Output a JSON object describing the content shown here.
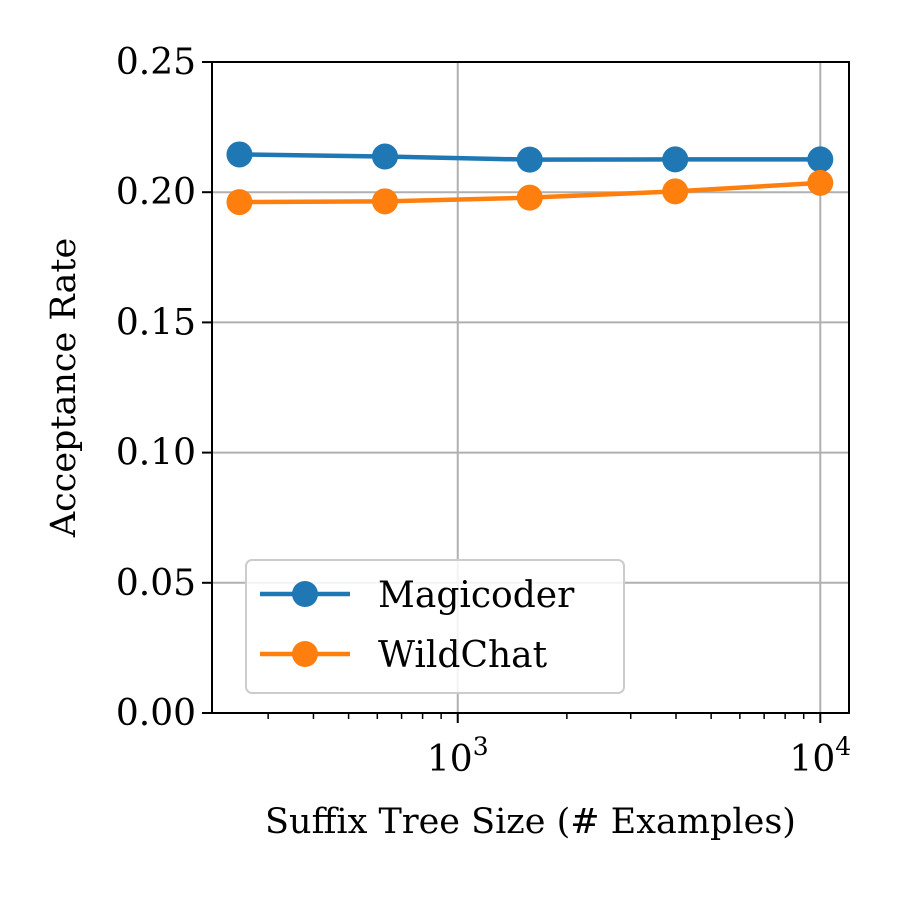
{
  "chart_data": {
    "type": "line",
    "title": "",
    "xlabel": "Suffix Tree Size (# Examples)",
    "ylabel": "Acceptance Rate",
    "x_scale": "log",
    "xlim": [
      210,
      12000
    ],
    "ylim": [
      0.0,
      0.25
    ],
    "y_ticks": [
      "0.00",
      "0.05",
      "0.10",
      "0.15",
      "0.20",
      "0.25"
    ],
    "x_ticks": [
      {
        "value": 1000,
        "base": "10",
        "exp": "3"
      },
      {
        "value": 10000,
        "base": "10",
        "exp": "4"
      }
    ],
    "x": [
      250,
      630,
      1580,
      3980,
      10000
    ],
    "series": [
      {
        "name": "Magicoder",
        "color": "#1f77b4",
        "values": [
          0.2145,
          0.2137,
          0.2125,
          0.2126,
          0.2126
        ]
      },
      {
        "name": "WildChat",
        "color": "#ff7f0e",
        "values": [
          0.1962,
          0.1965,
          0.1979,
          0.2003,
          0.2036
        ]
      }
    ],
    "grid": true,
    "legend_position": "lower-left"
  }
}
